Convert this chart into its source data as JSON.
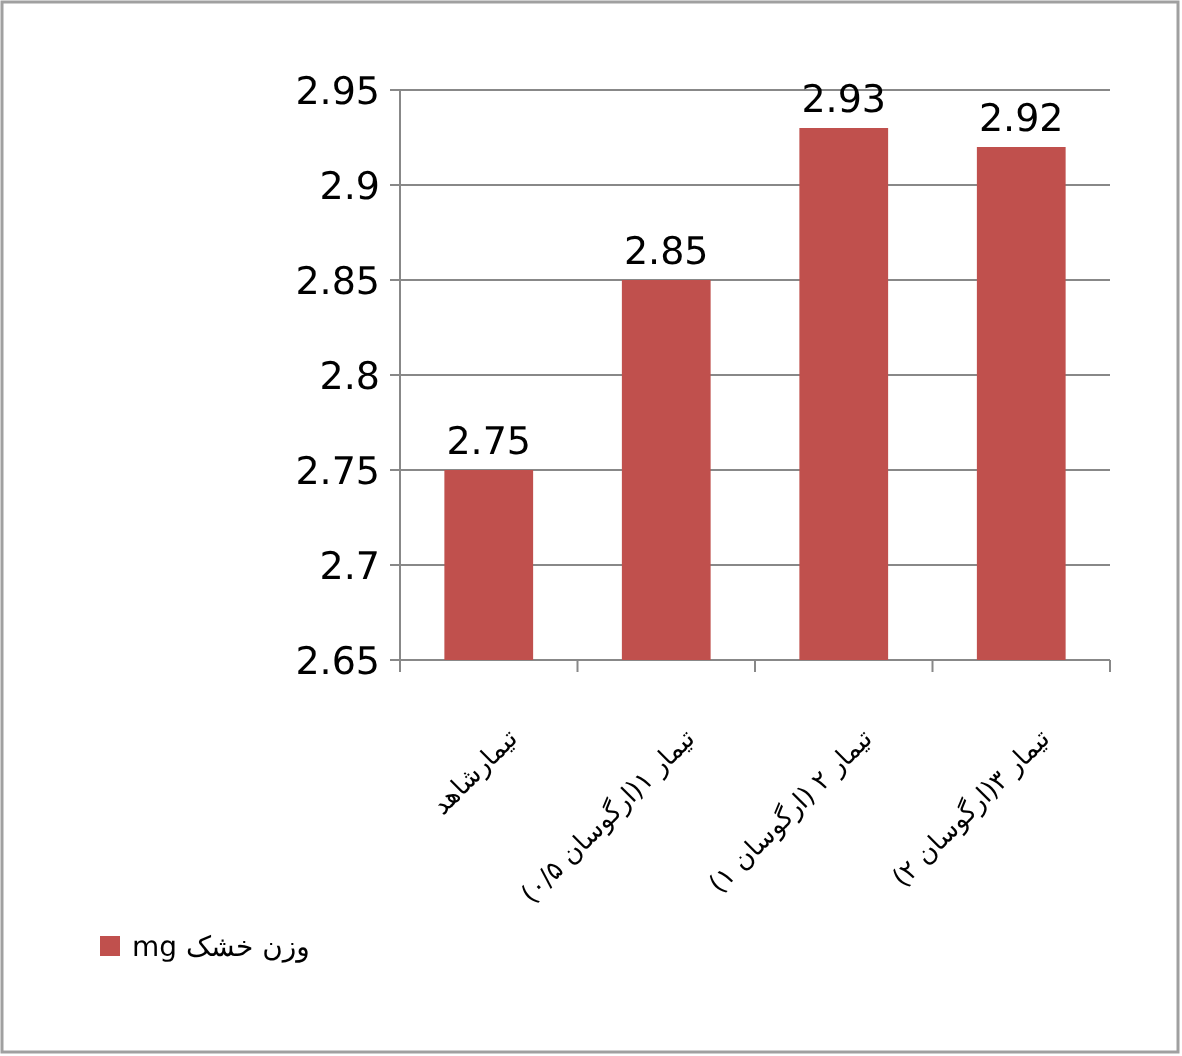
{
  "chart_data": {
    "type": "bar",
    "categories": [
      "تیمارشاهد",
      "تیمار ۱(ارگوسان ۰/۵)",
      "تیمار ۲ (ارگوسان ۱)",
      "تیمار ۳(ارگوسان ۲)"
    ],
    "series": [
      {
        "name": "وزن خشک mg",
        "color": "#c0504d",
        "values": [
          2.75,
          2.85,
          2.93,
          2.92
        ]
      }
    ],
    "ylim": [
      2.65,
      2.95
    ],
    "yticks": [
      2.65,
      2.7,
      2.75,
      2.8,
      2.85,
      2.9,
      2.95
    ],
    "grid": "y",
    "legend": "bottom left",
    "data_labels": true
  }
}
